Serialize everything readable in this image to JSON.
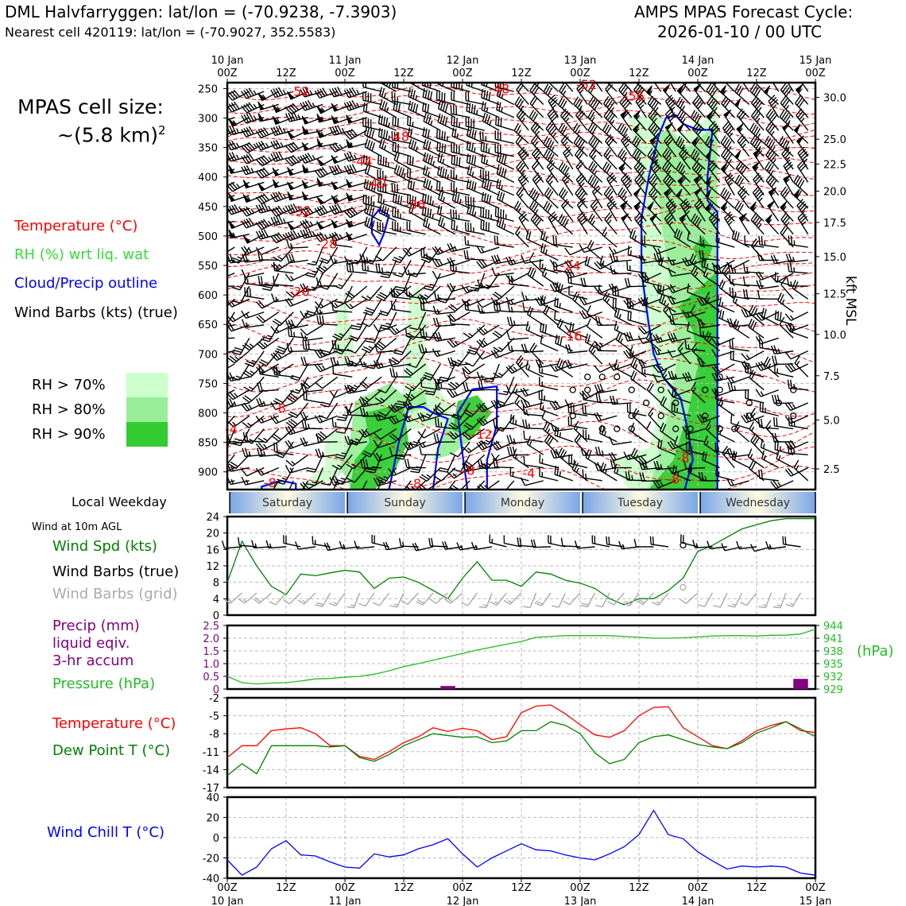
{
  "header": {
    "title_left": "DML Halvfarryggen: lat/lon = (-70.9238, -7.3903)",
    "subtitle_left": "Nearest cell 420119: lat/lon = (-70.9027, 352.5583)",
    "title_right_1": "AMPS MPAS Forecast Cycle:",
    "title_right_2": "2026-01-10 / 00 UTC"
  },
  "cell_size": {
    "line1": "MPAS cell size:",
    "line2": "~(5.8 km)",
    "sup": "2"
  },
  "legend": {
    "temperature": "Temperature (°C)",
    "rh": "RH (%) wrt liq. wat",
    "cloud": "Cloud/Precip outline",
    "wind": "Wind Barbs (kts) (true)",
    "rh70": "RH > 70%",
    "rh80": "RH > 80%",
    "rh90": "RH > 90%"
  },
  "colors": {
    "temp": "#ff0000",
    "rh_text": "#33dd33",
    "cloud": "#0000ff",
    "rh70": "#ccffcc",
    "rh80": "#99ee99",
    "rh90": "#33cc33",
    "pressure": "#22bb22",
    "precip": "#800080",
    "dew": "#008000",
    "chill": "#0000ff",
    "grid_barb": "#aaaaaa"
  },
  "time_axis": {
    "top_labels": [
      "10 Jan\n00Z",
      "12Z",
      "11 Jan\n00Z",
      "12Z",
      "12 Jan\n00Z",
      "12Z",
      "13 Jan\n00Z",
      "12Z",
      "14 Jan\n00Z",
      "12Z",
      "15 Jan\n00Z"
    ],
    "bottom_labels": [
      "00Z\n10 Jan",
      "12Z",
      "00Z\n11 Jan",
      "12Z",
      "00Z\n12 Jan",
      "12Z",
      "00Z\n13 Jan",
      "12Z",
      "00Z\n14 Jan",
      "12Z",
      "00Z\n15 Jan"
    ]
  },
  "weekday": {
    "label": "Local Weekday",
    "days": [
      "Saturday",
      "Sunday",
      "Monday",
      "Tuesday",
      "Wednesday"
    ]
  },
  "wind10": {
    "title": "Wind at 10m AGL",
    "spd_label": "Wind Spd (kts)",
    "barb_label": "Wind Barbs (true)",
    "grid_label": "Wind Barbs (grid)"
  },
  "precip_labels": {
    "l1": "Precip (mm)",
    "l2": "liquid eqiv.",
    "l3": "3-hr accum",
    "pressure": "Pressure (hPa)",
    "unit": "(hPa)"
  },
  "temp_labels": {
    "temp": "Temperature (°C)",
    "dew": "Dew Point T (°C)"
  },
  "chill_label": "Wind Chill T (°C)",
  "chart_data": [
    {
      "type": "cross-section",
      "title": "Time-height cross section",
      "pressure_levels": [
        250,
        300,
        350,
        400,
        450,
        500,
        550,
        600,
        650,
        700,
        750,
        800,
        850,
        900
      ],
      "ylim_hpa": [
        240,
        930
      ],
      "height_kft": [
        30.0,
        25.0,
        22.5,
        20.0,
        17.5,
        15.0,
        12.5,
        10.0,
        7.5,
        5.0,
        2.5
      ],
      "height_kft_p": [
        265,
        336,
        378,
        424,
        477,
        535,
        598,
        667,
        737,
        812,
        895
      ],
      "ylabel_right": "kft MSL",
      "temp_contour_labels": [
        {
          "t": "-52",
          "h": 14.7,
          "p": 262
        },
        {
          "t": "-48",
          "h": 55.5,
          "p": 258
        },
        {
          "t": "-52",
          "h": 73.3,
          "p": 251
        },
        {
          "t": "-56",
          "h": 83,
          "p": 270
        },
        {
          "t": "-48",
          "h": 35,
          "p": 339
        },
        {
          "t": "-44",
          "h": 27.5,
          "p": 381
        },
        {
          "t": "-40",
          "h": 30.3,
          "p": 418
        },
        {
          "t": "-36",
          "h": 38.3,
          "p": 454
        },
        {
          "t": "-32",
          "h": 15,
          "p": 465
        },
        {
          "t": "-28",
          "h": 20.3,
          "p": 521
        },
        {
          "t": "-24",
          "h": 70,
          "p": 558
        },
        {
          "t": "-20",
          "h": 14.7,
          "p": 602
        },
        {
          "t": "-16",
          "h": 70.3,
          "p": 677
        },
        {
          "t": "-12",
          "h": 52,
          "p": 844
        },
        {
          "t": "-8",
          "h": 10.7,
          "p": 799
        },
        {
          "t": "-8",
          "h": 38.3,
          "p": 927
        },
        {
          "t": "-8",
          "h": 49.2,
          "p": 905
        },
        {
          "t": "-8",
          "h": 8.7,
          "p": 926
        },
        {
          "t": "-4",
          "h": 61.5,
          "p": 910
        },
        {
          "t": "-8",
          "h": 93,
          "p": 884
        },
        {
          "t": "-8",
          "h": 91,
          "p": 920
        },
        {
          "t": "-4",
          "h": 0.8,
          "p": 835
        }
      ]
    },
    {
      "type": "line",
      "title": "Wind at 10m AGL",
      "ylabel": "Wind Spd (kts)",
      "ylim": [
        0,
        24
      ],
      "yticks": [
        0,
        4,
        8,
        12,
        16,
        20,
        24
      ],
      "x_hours": [
        0,
        3,
        6,
        9,
        12,
        15,
        18,
        21,
        24,
        27,
        30,
        33,
        36,
        39,
        42,
        45,
        48,
        51,
        54,
        57,
        60,
        63,
        66,
        69,
        72,
        75,
        78,
        81,
        84,
        87,
        90,
        93,
        96,
        99,
        102,
        105,
        108,
        111,
        114,
        117,
        120
      ],
      "series": [
        {
          "name": "Wind Spd",
          "values": [
            8,
            18,
            12,
            7,
            5,
            10,
            9.6,
            10.3,
            10.9,
            10.5,
            6.5,
            9,
            9.3,
            8,
            6,
            4,
            9,
            13,
            8.5,
            8.5,
            7,
            10.5,
            10,
            8.5,
            7.8,
            6.5,
            4,
            2.5,
            4,
            4,
            6,
            9,
            15.5,
            17,
            19,
            21,
            22,
            23,
            23.5,
            23.5,
            23.5
          ]
        }
      ]
    },
    {
      "type": "bar+line",
      "title": "Precip and Pressure",
      "ylabel_left": "Precip (mm)",
      "ylim_left": [
        0,
        2.5
      ],
      "yticks_left": [
        0,
        0.5,
        1.0,
        1.5,
        2.0,
        2.5
      ],
      "ylabel_right": "Pressure (hPa)",
      "ylim_right": [
        929,
        944
      ],
      "yticks_right": [
        929,
        932,
        935,
        938,
        941,
        944
      ],
      "precip_bars": [
        {
          "h": 46.5,
          "v": 0.12
        },
        {
          "h": 118.5,
          "v": 0.4
        }
      ],
      "pressure_x_hours": [
        0,
        3,
        6,
        9,
        12,
        15,
        18,
        21,
        24,
        27,
        30,
        33,
        36,
        39,
        42,
        45,
        48,
        51,
        54,
        57,
        60,
        63,
        66,
        69,
        72,
        75,
        78,
        81,
        84,
        87,
        90,
        93,
        96,
        99,
        102,
        105,
        108,
        111,
        114,
        117,
        120
      ],
      "pressure_values": [
        932,
        930.5,
        930.2,
        930.4,
        930.5,
        930.9,
        931.4,
        931.5,
        931.8,
        932,
        932.5,
        933.3,
        934.3,
        935,
        935.8,
        936.6,
        937.4,
        938.2,
        938.9,
        939.6,
        940.2,
        941.2,
        941.4,
        941.6,
        941.6,
        941.6,
        941.6,
        941.4,
        941.2,
        941.0,
        941.0,
        941.1,
        941.3,
        941.5,
        941.6,
        941.6,
        941.5,
        941.7,
        941.7,
        942,
        943.1
      ]
    },
    {
      "type": "line",
      "title": "Temperature and Dew Point",
      "ylim": [
        -17,
        -2
      ],
      "yticks": [
        -17,
        -14,
        -11,
        -8,
        -5,
        -2
      ],
      "x_hours": [
        0,
        3,
        6,
        9,
        12,
        15,
        18,
        21,
        24,
        27,
        30,
        33,
        36,
        39,
        42,
        45,
        48,
        51,
        54,
        57,
        60,
        63,
        66,
        69,
        72,
        75,
        78,
        81,
        84,
        87,
        90,
        93,
        96,
        99,
        102,
        105,
        108,
        111,
        114,
        117,
        120
      ],
      "series": [
        {
          "name": "Temperature",
          "values": [
            -12,
            -10,
            -10,
            -7.5,
            -7.2,
            -7,
            -8,
            -10,
            -10,
            -11.8,
            -12.3,
            -11,
            -9.5,
            -8.5,
            -7,
            -7.6,
            -7.1,
            -7.5,
            -9,
            -8.5,
            -4.5,
            -3.4,
            -3.2,
            -4.7,
            -6.5,
            -8.2,
            -8.6,
            -7.5,
            -5,
            -3.6,
            -3.5,
            -7,
            -8.5,
            -10,
            -10.5,
            -9.2,
            -7.5,
            -6.6,
            -6,
            -7.5,
            -7.8
          ]
        },
        {
          "name": "Dew Point",
          "values": [
            -15,
            -13,
            -14.7,
            -10,
            -10,
            -10,
            -10,
            -10.2,
            -10,
            -12,
            -12.6,
            -11.5,
            -10,
            -9,
            -8,
            -8.3,
            -8.6,
            -8.5,
            -9.5,
            -9.2,
            -7.5,
            -7.5,
            -6,
            -6.6,
            -8,
            -11.2,
            -13,
            -12.3,
            -9.5,
            -8.5,
            -8.2,
            -9,
            -9.8,
            -10.2,
            -10.5,
            -9.5,
            -7.9,
            -7,
            -6,
            -7.2,
            -8.5
          ]
        }
      ]
    },
    {
      "type": "line",
      "title": "Wind Chill",
      "ylabel": "Wind Chill T (°C)",
      "ylim": [
        -40,
        40
      ],
      "yticks": [
        -40,
        -20,
        0,
        20,
        40
      ],
      "x_hours": [
        0,
        3,
        6,
        9,
        12,
        15,
        18,
        21,
        24,
        27,
        30,
        33,
        36,
        39,
        42,
        45,
        48,
        51,
        54,
        57,
        60,
        63,
        66,
        69,
        72,
        75,
        78,
        81,
        84,
        87,
        90,
        93,
        96,
        99,
        102,
        105,
        108,
        111,
        114,
        117,
        120
      ],
      "series": [
        {
          "name": "Wind Chill",
          "values": [
            -22,
            -37,
            -29,
            -11,
            -3,
            -17,
            -18,
            -24,
            -29,
            -30,
            -16,
            -19,
            -17,
            -11,
            -7,
            -1,
            -16,
            -29,
            -20,
            -13,
            -6,
            -12,
            -13,
            -17,
            -20,
            -22,
            -16,
            -9,
            3,
            27,
            3,
            -1,
            -14,
            -23,
            -31,
            -28,
            -29,
            -28,
            -29,
            -35,
            -37
          ]
        }
      ]
    }
  ]
}
